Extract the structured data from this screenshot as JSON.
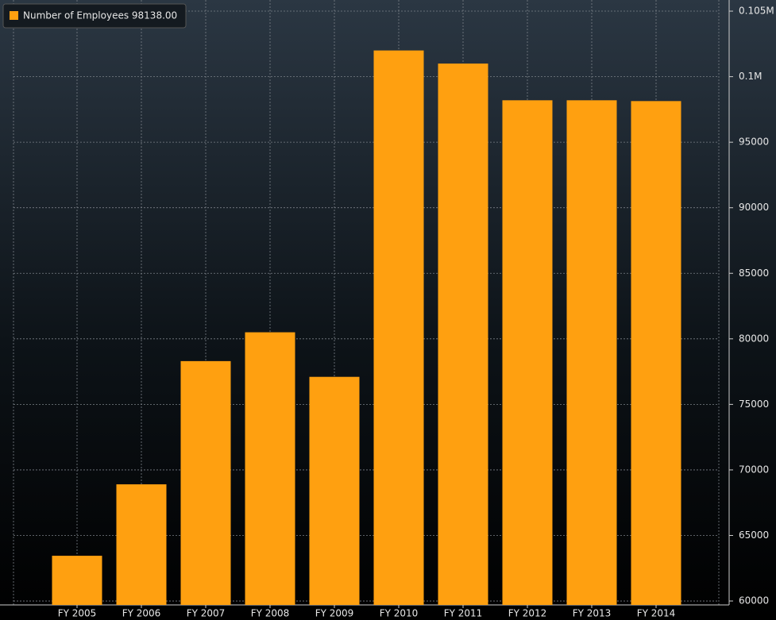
{
  "chart_data": {
    "type": "bar",
    "categories": [
      "FY 2005",
      "FY 2006",
      "FY 2007",
      "FY 2008",
      "FY 2009",
      "FY 2010",
      "FY 2011",
      "FY 2012",
      "FY 2013",
      "FY 2014"
    ],
    "series": [
      {
        "name": "Number of Employees 98138.00",
        "color": "#ffa010",
        "values": [
          63450,
          68900,
          78300,
          80500,
          77100,
          102000,
          101000,
          98200,
          98200,
          98138
        ]
      }
    ],
    "ylim": [
      59700,
      105850
    ],
    "yticks": [
      60000,
      65000,
      70000,
      75000,
      80000,
      85000,
      90000,
      95000,
      {
        "value": 100000,
        "label": "0.1M"
      },
      {
        "value": 105000,
        "label": "0.105M"
      }
    ],
    "grid": true,
    "legend": "top-left"
  }
}
